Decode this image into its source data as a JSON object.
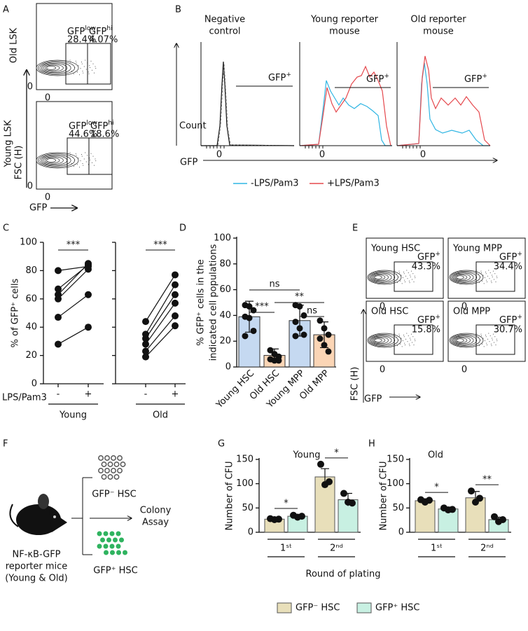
{
  "panel_a": {
    "label": "A",
    "zero": "0",
    "ylabel": "FSC (H)",
    "xlabel": "GFP",
    "plots": [
      {
        "name": "Old LSK",
        "gates": [
          {
            "text": "GFP",
            "sup": "low",
            "percent": "28.4%"
          },
          {
            "text": "GFP",
            "sup": "hi",
            "percent": "4.07%"
          }
        ]
      },
      {
        "name": "Young LSK",
        "gates": [
          {
            "text": "GFP",
            "sup": "low",
            "percent": "44.6%"
          },
          {
            "text": "GFP",
            "sup": "hi",
            "percent": "18.6%"
          }
        ]
      }
    ]
  },
  "panel_b": {
    "label": "B",
    "titles": [
      [
        "Negative",
        "control"
      ],
      [
        "Young reporter",
        "mouse"
      ],
      [
        "Old reporter",
        "mouse"
      ]
    ],
    "gate": {
      "text": "GFP",
      "sup": "+"
    },
    "ylabel": "Count",
    "xlabel": "GFP",
    "zero": "0",
    "legend": [
      {
        "name": "-LPS/Pam3",
        "color": "#2fb5e3"
      },
      {
        "name": "+LPS/Pam3",
        "color": "#e5484d"
      }
    ]
  },
  "panel_e": {
    "label": "E",
    "gate": {
      "text": "GFP",
      "sup": "+"
    },
    "ylabel": "FSC (H)",
    "xlabel": "GFP",
    "zero": "0",
    "plots": [
      {
        "title": "Young HSC",
        "percent": "43.3%"
      },
      {
        "title": "Young MPP",
        "percent": "34.4%"
      },
      {
        "title": "Old HSC",
        "percent": "15.8%"
      },
      {
        "title": "Old MPP",
        "percent": "30.7%"
      }
    ]
  },
  "panel_f": {
    "label": "F",
    "negative": "GFP⁻ HSC",
    "positive": "GFP⁺ HSC",
    "assay": [
      "Colony",
      "Assay"
    ],
    "mice": [
      "NF-κB-GFP",
      "reporter mice",
      "(Young & Old)"
    ]
  },
  "gh_shared": {
    "xlabel": "Round of plating",
    "legend": [
      "GFP⁻ HSC",
      "GFP⁺ HSC"
    ]
  },
  "chart_data": [
    {
      "type": "paired",
      "label": "C",
      "ylabel": "% of GFP⁺ cells",
      "xlabel": "LPS/Pam3",
      "categories": [
        "-",
        "+"
      ],
      "ylim": [
        0,
        100
      ],
      "yticks": [
        0,
        20,
        40,
        60,
        80,
        100
      ],
      "groups": [
        {
          "name": "Young",
          "annotation": "***",
          "pairs": [
            [
              28,
              40
            ],
            [
              47,
              63
            ],
            [
              60,
              81
            ],
            [
              63,
              85
            ],
            [
              67,
              84
            ],
            [
              80,
              83
            ]
          ]
        },
        {
          "name": "Old",
          "annotation": "***",
          "pairs": [
            [
              19,
              41
            ],
            [
              23,
              48
            ],
            [
              28,
              57
            ],
            [
              32,
              63
            ],
            [
              35,
              70
            ],
            [
              44,
              77
            ]
          ]
        }
      ]
    },
    {
      "type": "bar",
      "label": "D",
      "ylabel": [
        "% GFP⁺ cells in the",
        "indicated cell populations"
      ],
      "categories": [
        "Young HSC",
        "Old HSC",
        "Young MPP",
        "Old MPP"
      ],
      "values": [
        39,
        9,
        36,
        25
      ],
      "errors": [
        12,
        5,
        12,
        10
      ],
      "colors": [
        "#c5d9f1",
        "#fbd5b5",
        "#c5d9f1",
        "#fbd5b5"
      ],
      "points": [
        [
          48,
          47,
          44,
          39,
          38,
          28,
          24
        ],
        [
          13,
          10,
          8,
          6,
          5,
          5
        ],
        [
          48,
          47,
          40,
          35,
          30,
          25,
          24
        ],
        [
          36,
          30,
          25,
          22,
          17,
          12
        ]
      ],
      "ylim": [
        0,
        100
      ],
      "yticks": [
        0,
        20,
        40,
        60,
        80,
        100
      ],
      "annotations": [
        "ns",
        "***",
        "**",
        "ns"
      ]
    },
    {
      "type": "grouped_bar",
      "label": "G",
      "title": "Young",
      "ylabel": "Number of CFU",
      "categories": [
        "1ˢᵗ",
        "2ⁿᵈ"
      ],
      "ylim": [
        0,
        150
      ],
      "yticks": [
        0,
        50,
        100,
        150
      ],
      "series": [
        {
          "color": "#e8dfba",
          "values": [
            27,
            114
          ],
          "errors": [
            2,
            17
          ],
          "points": [
            [
              28,
              27,
              26
            ],
            [
              140,
              104,
              98
            ]
          ]
        },
        {
          "color": "#c8f0e2",
          "values": [
            33,
            67
          ],
          "errors": [
            3,
            13
          ],
          "points": [
            [
              35,
              33,
              31
            ],
            [
              80,
              60,
              62
            ]
          ]
        }
      ],
      "annotations": [
        "*",
        "*"
      ]
    },
    {
      "type": "grouped_bar",
      "label": "H",
      "title": "Old",
      "ylabel": "Number of CFU",
      "categories": [
        "1ˢᵗ",
        "2ⁿᵈ"
      ],
      "ylim": [
        0,
        150
      ],
      "yticks": [
        0,
        50,
        100,
        150
      ],
      "series": [
        {
          "color": "#e8dfba",
          "values": [
            65,
            71
          ],
          "errors": [
            4,
            13
          ],
          "points": [
            [
              67,
              66,
              62
            ],
            [
              85,
              70,
              62
            ]
          ]
        },
        {
          "color": "#c8f0e2",
          "values": [
            48,
            26
          ],
          "errors": [
            4,
            5
          ],
          "points": [
            [
              50,
              47,
              46
            ],
            [
              32,
              26,
              22
            ]
          ]
        }
      ],
      "annotations": [
        "*",
        "**"
      ]
    }
  ]
}
